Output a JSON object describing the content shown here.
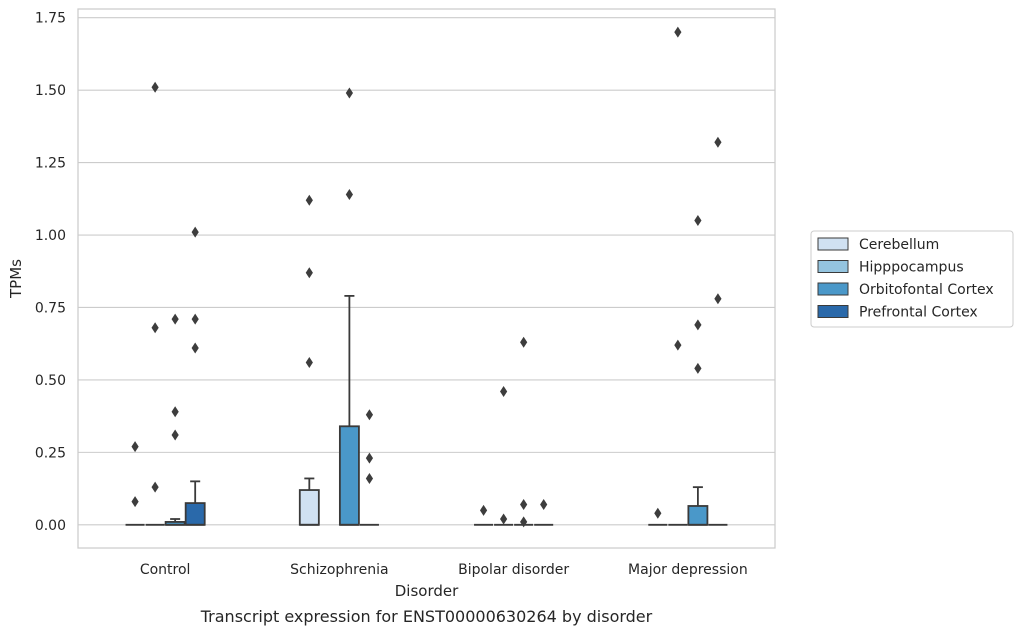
{
  "chart_data": {
    "type": "box",
    "caption": "Transcript expression for ENST00000630264 by disorder",
    "xlabel": "Disorder",
    "ylabel": "TPMs",
    "ylim": [
      -0.08,
      1.78
    ],
    "yticks": [
      0.0,
      0.25,
      0.5,
      0.75,
      1.0,
      1.25,
      1.5,
      1.75
    ],
    "ytick_labels": [
      "0.00",
      "0.25",
      "0.50",
      "0.75",
      "1.00",
      "1.25",
      "1.50",
      "1.75"
    ],
    "grid": "horizontal",
    "legend_position": "right",
    "categories": [
      "Control",
      "Schizophrenia",
      "Bipolar disorder",
      "Major depression"
    ],
    "series": [
      {
        "name": "Cerebellum",
        "color": "#d0e1f2",
        "boxes": [
          {
            "q1": 0,
            "median": 0,
            "q3": 0,
            "whisker_low": 0,
            "whisker_high": 0,
            "outliers": [
              0.08,
              0.27
            ]
          },
          {
            "q1": 0,
            "median": 0,
            "q3": 0.12,
            "whisker_low": 0,
            "whisker_high": 0.16,
            "outliers": [
              0.56,
              0.87,
              1.12
            ]
          },
          {
            "q1": 0,
            "median": 0,
            "q3": 0,
            "whisker_low": 0,
            "whisker_high": 0,
            "outliers": [
              0.05
            ]
          },
          {
            "q1": 0,
            "median": 0,
            "q3": 0,
            "whisker_low": 0,
            "whisker_high": 0,
            "outliers": [
              0.04
            ]
          }
        ]
      },
      {
        "name": "Hipppocampus",
        "color": "#94c4df",
        "boxes": [
          {
            "q1": 0,
            "median": 0,
            "q3": 0,
            "whisker_low": 0,
            "whisker_high": 0,
            "outliers": [
              0.13,
              0.68,
              1.51
            ]
          },
          null,
          {
            "q1": 0,
            "median": 0,
            "q3": 0,
            "whisker_low": 0,
            "whisker_high": 0,
            "outliers": [
              0.02,
              0.46
            ]
          },
          {
            "q1": 0,
            "median": 0,
            "q3": 0,
            "whisker_low": 0,
            "whisker_high": 0,
            "outliers": [
              0.62,
              1.7
            ]
          }
        ]
      },
      {
        "name": "Orbitofontal Cortex",
        "color": "#4a98c9",
        "boxes": [
          {
            "q1": 0,
            "median": 0,
            "q3": 0.01,
            "whisker_low": 0,
            "whisker_high": 0.02,
            "outliers": [
              0.31,
              0.39,
              0.71
            ]
          },
          {
            "q1": 0,
            "median": 0,
            "q3": 0.34,
            "whisker_low": 0,
            "whisker_high": 0.79,
            "outliers": [
              1.14,
              1.49
            ]
          },
          {
            "q1": 0,
            "median": 0,
            "q3": 0,
            "whisker_low": 0,
            "whisker_high": 0,
            "outliers": [
              0.01,
              0.07,
              0.63
            ]
          },
          {
            "q1": 0,
            "median": 0,
            "q3": 0.065,
            "whisker_low": 0,
            "whisker_high": 0.13,
            "outliers": [
              0.54,
              0.69,
              1.05
            ]
          }
        ]
      },
      {
        "name": "Prefrontal Cortex",
        "color": "#2a69aa",
        "boxes": [
          {
            "q1": 0,
            "median": 0,
            "q3": 0.075,
            "whisker_low": 0,
            "whisker_high": 0.15,
            "outliers": [
              0.61,
              0.71,
              1.01
            ]
          },
          {
            "q1": 0,
            "median": 0,
            "q3": 0,
            "whisker_low": 0,
            "whisker_high": 0,
            "outliers": [
              0.16,
              0.23,
              0.38
            ]
          },
          {
            "q1": 0,
            "median": 0,
            "q3": 0,
            "whisker_low": 0,
            "whisker_high": 0,
            "outliers": [
              0.07
            ]
          },
          {
            "q1": 0,
            "median": 0,
            "q3": 0,
            "whisker_low": 0,
            "whisker_high": 0,
            "outliers": [
              0.78,
              1.32
            ]
          }
        ]
      }
    ]
  }
}
